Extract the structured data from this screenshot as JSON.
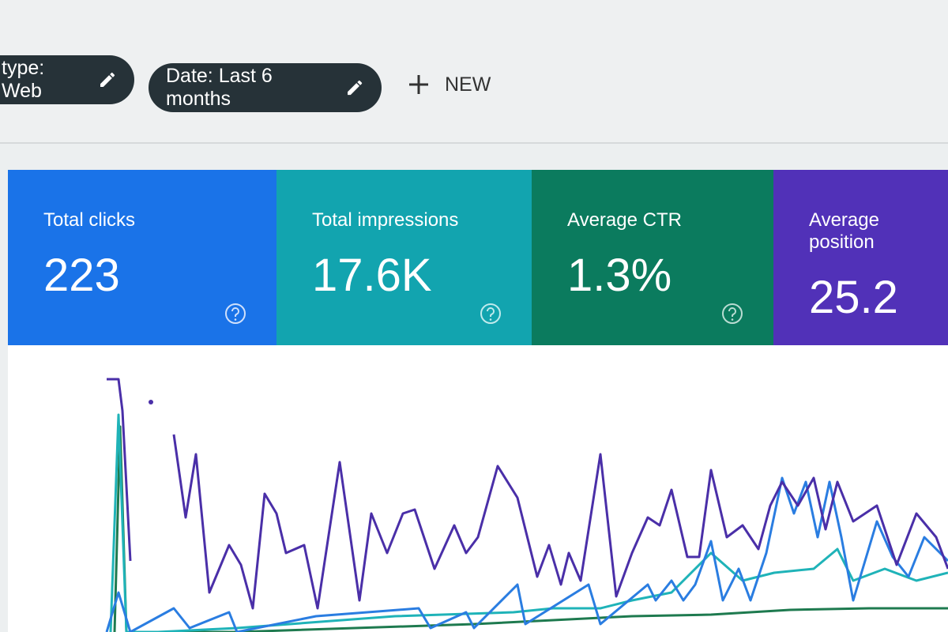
{
  "filters": [
    {
      "label": "type: Web"
    },
    {
      "label": "Date: Last 6 months"
    }
  ],
  "new_button": {
    "label": "NEW"
  },
  "metrics": [
    {
      "label": "Total clicks",
      "value": "223"
    },
    {
      "label": "Total impressions",
      "value": "17.6K"
    },
    {
      "label": "Average CTR",
      "value": "1.3%"
    },
    {
      "label": "Average position",
      "value": "25.2"
    }
  ]
}
